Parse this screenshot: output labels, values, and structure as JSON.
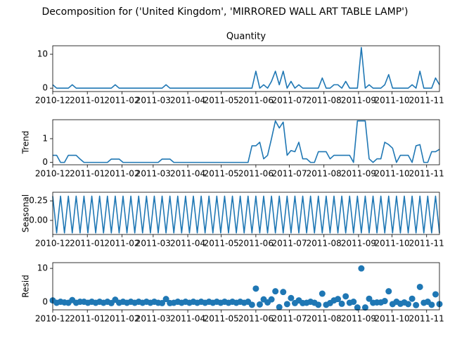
{
  "title": "Decomposition for ('United Kingdom', 'MIRRORED WALL ART TABLE LAMP')",
  "chart_data": [
    {
      "type": "line",
      "title": "Quantity",
      "color": "#1f77b4",
      "x": [
        0,
        3.5,
        7,
        10.5,
        14,
        17.5,
        21,
        24.5,
        28,
        31.5,
        35,
        38.5,
        42,
        45.5,
        49,
        52.5,
        56,
        59.5,
        63,
        66.5,
        70,
        73.5,
        77,
        80.5,
        84,
        87.5,
        91,
        94.5,
        98,
        101.5,
        105,
        108.5,
        112,
        115.5,
        119,
        122.5,
        126,
        129.5,
        133,
        136.5,
        140,
        143.5,
        147,
        150.5,
        154,
        157.5,
        161,
        164.5,
        168,
        171.5,
        175,
        178.5,
        182,
        185.5,
        189,
        192.5,
        196,
        199.5,
        203,
        206.5,
        210,
        213.5,
        217,
        220.5,
        224,
        227.5,
        231,
        234.5,
        238,
        241.5,
        245,
        248.5,
        252,
        255.5,
        259,
        262.5,
        266,
        269.5,
        273,
        276.5,
        280,
        283.5,
        287,
        290.5,
        294,
        297.5,
        301,
        304.5,
        308,
        311.5,
        315,
        318.5,
        322,
        325.5,
        329,
        332.5,
        336,
        339.5,
        343,
        346.5
      ],
      "values": [
        1,
        0,
        0,
        0,
        0,
        1,
        0,
        0,
        0,
        0,
        0,
        0,
        0,
        0,
        0,
        0,
        1,
        0,
        0,
        0,
        0,
        0,
        0,
        0,
        0,
        0,
        0,
        0,
        0,
        1,
        0,
        0,
        0,
        0,
        0,
        0,
        0,
        0,
        0,
        0,
        0,
        0,
        0,
        0,
        0,
        0,
        0,
        0,
        0,
        0,
        0,
        0,
        5,
        0,
        1,
        0,
        2,
        5,
        1,
        5,
        0,
        2,
        0,
        1,
        0,
        0,
        0,
        0,
        0,
        3,
        0,
        0,
        1,
        1,
        0,
        2,
        0,
        0,
        0,
        12,
        0,
        1,
        0,
        0,
        0,
        1,
        4,
        0,
        0,
        0,
        0,
        0,
        1,
        0,
        5,
        0,
        0,
        0,
        3,
        1
      ],
      "xlim": [
        0,
        346.5
      ],
      "xticks": [
        {
          "value": 0,
          "label": "2010-12"
        },
        {
          "value": 31,
          "label": "2011-01"
        },
        {
          "value": 62,
          "label": "2011-02"
        },
        {
          "value": 90,
          "label": "2011-03"
        },
        {
          "value": 121,
          "label": "2011-04"
        },
        {
          "value": 151,
          "label": "2011-05"
        },
        {
          "value": 182,
          "label": "2011-06"
        },
        {
          "value": 212,
          "label": "2011-07"
        },
        {
          "value": 243,
          "label": "2011-08"
        },
        {
          "value": 274,
          "label": "2011-09"
        },
        {
          "value": 304,
          "label": "2011-10"
        },
        {
          "value": 335,
          "label": "2011-11"
        }
      ],
      "ylim": [
        -1,
        12.5
      ],
      "yticks": [
        0,
        10
      ]
    },
    {
      "type": "line",
      "ylabel": "Trend",
      "color": "#1f77b4",
      "x": [
        0,
        3.5,
        7,
        10.5,
        14,
        17.5,
        21,
        24.5,
        28,
        31.5,
        35,
        38.5,
        42,
        45.5,
        49,
        52.5,
        56,
        59.5,
        63,
        66.5,
        70,
        73.5,
        77,
        80.5,
        84,
        87.5,
        91,
        94.5,
        98,
        101.5,
        105,
        108.5,
        112,
        115.5,
        119,
        122.5,
        126,
        129.5,
        133,
        136.5,
        140,
        143.5,
        147,
        150.5,
        154,
        157.5,
        161,
        164.5,
        168,
        171.5,
        175,
        178.5,
        182,
        185.5,
        189,
        192.5,
        196,
        199.5,
        203,
        206.5,
        210,
        213.5,
        217,
        220.5,
        224,
        227.5,
        231,
        234.5,
        238,
        241.5,
        245,
        248.5,
        252,
        255.5,
        259,
        262.5,
        266,
        269.5,
        273,
        276.5,
        280,
        283.5,
        287,
        290.5,
        294,
        297.5,
        301,
        304.5,
        308,
        311.5,
        315,
        318.5,
        322,
        325.5,
        329,
        332.5,
        336,
        339.5,
        343,
        346.5
      ],
      "values": [
        0.3,
        0.3,
        0,
        0,
        0.3,
        0.3,
        0.3,
        0.14,
        0,
        0,
        0,
        0,
        0,
        0,
        0,
        0.14,
        0.14,
        0.14,
        0,
        0,
        0,
        0,
        0,
        0,
        0,
        0,
        0,
        0,
        0.14,
        0.14,
        0.14,
        0,
        0,
        0,
        0,
        0,
        0,
        0,
        0,
        0,
        0,
        0,
        0,
        0,
        0,
        0,
        0,
        0,
        0,
        0,
        0,
        0.7,
        0.7,
        0.85,
        0.15,
        0.3,
        1.0,
        1.75,
        1.45,
        1.7,
        0.3,
        0.5,
        0.45,
        0.85,
        0.15,
        0.15,
        0,
        0,
        0.45,
        0.45,
        0.45,
        0.15,
        0.3,
        0.3,
        0.3,
        0.3,
        0.3,
        0,
        1.75,
        1.75,
        1.75,
        0.15,
        0,
        0.15,
        0.15,
        0.85,
        0.75,
        0.6,
        0,
        0.3,
        0.3,
        0.3,
        0,
        0.7,
        0.75,
        0,
        0,
        0.45,
        0.45,
        0.55
      ],
      "xlim": [
        0,
        346.5
      ],
      "xticks": [
        {
          "value": 0,
          "label": "2010-12"
        },
        {
          "value": 31,
          "label": "2011-01"
        },
        {
          "value": 62,
          "label": "2011-02"
        },
        {
          "value": 90,
          "label": "2011-03"
        },
        {
          "value": 121,
          "label": "2011-04"
        },
        {
          "value": 151,
          "label": "2011-05"
        },
        {
          "value": 182,
          "label": "2011-06"
        },
        {
          "value": 212,
          "label": "2011-07"
        },
        {
          "value": 243,
          "label": "2011-08"
        },
        {
          "value": 274,
          "label": "2011-09"
        },
        {
          "value": 304,
          "label": "2011-10"
        },
        {
          "value": 335,
          "label": "2011-11"
        }
      ],
      "ylim": [
        -0.1,
        1.8
      ],
      "yticks": [
        0,
        1
      ]
    },
    {
      "type": "line",
      "ylabel": "Seasonal",
      "color": "#1f77b4",
      "x": [
        0,
        3.5,
        7,
        10.5,
        14,
        17.5,
        21,
        24.5,
        28,
        31.5,
        35,
        38.5,
        42,
        45.5,
        49,
        52.5,
        56,
        59.5,
        63,
        66.5,
        70,
        73.5,
        77,
        80.5,
        84,
        87.5,
        91,
        94.5,
        98,
        101.5,
        105,
        108.5,
        112,
        115.5,
        119,
        122.5,
        126,
        129.5,
        133,
        136.5,
        140,
        143.5,
        147,
        150.5,
        154,
        157.5,
        161,
        164.5,
        168,
        171.5,
        175,
        178.5,
        182,
        185.5,
        189,
        192.5,
        196,
        199.5,
        203,
        206.5,
        210,
        213.5,
        217,
        220.5,
        224,
        227.5,
        231,
        234.5,
        238,
        241.5,
        245,
        248.5,
        252,
        255.5,
        259,
        262.5,
        266,
        269.5,
        273,
        276.5,
        280,
        283.5,
        287,
        290.5,
        294,
        297.5,
        301,
        304.5,
        308,
        311.5,
        315,
        318.5,
        322,
        325.5,
        329,
        332.5,
        336,
        339.5,
        343,
        346.5
      ],
      "values": [
        0.31,
        -0.16,
        0.31,
        -0.16,
        0.31,
        -0.16,
        0.31,
        -0.16,
        0.31,
        -0.16,
        0.31,
        -0.16,
        0.31,
        -0.16,
        0.31,
        -0.16,
        0.31,
        -0.16,
        0.31,
        -0.16,
        0.31,
        -0.16,
        0.31,
        -0.16,
        0.31,
        -0.16,
        0.31,
        -0.16,
        0.31,
        -0.16,
        0.31,
        -0.16,
        0.31,
        -0.16,
        0.31,
        -0.16,
        0.31,
        -0.16,
        0.31,
        -0.16,
        0.31,
        -0.16,
        0.31,
        -0.16,
        0.31,
        -0.16,
        0.31,
        -0.16,
        0.31,
        -0.16,
        0.31,
        -0.16,
        0.31,
        -0.16,
        0.31,
        -0.16,
        0.31,
        -0.16,
        0.31,
        -0.16,
        0.31,
        -0.16,
        0.31,
        -0.16,
        0.31,
        -0.16,
        0.31,
        -0.16,
        0.31,
        -0.16,
        0.31,
        -0.16,
        0.31,
        -0.16,
        0.31,
        -0.16,
        0.31,
        -0.16,
        0.31,
        -0.16,
        0.31,
        -0.16,
        0.31,
        -0.16,
        0.31,
        -0.16,
        0.31,
        -0.16,
        0.31,
        -0.16,
        0.31,
        -0.16,
        0.31,
        -0.16,
        0.31,
        -0.16,
        0.31,
        -0.16,
        0.31,
        -0.16
      ],
      "xlim": [
        0,
        346.5
      ],
      "xticks": [
        {
          "value": 0,
          "label": "2010-12"
        },
        {
          "value": 31,
          "label": "2011-01"
        },
        {
          "value": 62,
          "label": "2011-02"
        },
        {
          "value": 90,
          "label": "2011-03"
        },
        {
          "value": 121,
          "label": "2011-04"
        },
        {
          "value": 151,
          "label": "2011-05"
        },
        {
          "value": 182,
          "label": "2011-06"
        },
        {
          "value": 212,
          "label": "2011-07"
        },
        {
          "value": 243,
          "label": "2011-08"
        },
        {
          "value": 274,
          "label": "2011-09"
        },
        {
          "value": 304,
          "label": "2011-10"
        },
        {
          "value": 335,
          "label": "2011-11"
        }
      ],
      "ylim": [
        -0.18,
        0.36
      ],
      "yticks": [
        {
          "value": 0,
          "label": "0.00"
        },
        {
          "value": 0.25,
          "label": "0.25"
        }
      ]
    },
    {
      "type": "scatter",
      "ylabel": "Resid",
      "color": "#1f77b4",
      "x": [
        0,
        3.5,
        7,
        10.5,
        14,
        17.5,
        21,
        24.5,
        28,
        31.5,
        35,
        38.5,
        42,
        45.5,
        49,
        52.5,
        56,
        59.5,
        63,
        66.5,
        70,
        73.5,
        77,
        80.5,
        84,
        87.5,
        91,
        94.5,
        98,
        101.5,
        105,
        108.5,
        112,
        115.5,
        119,
        122.5,
        126,
        129.5,
        133,
        136.5,
        140,
        143.5,
        147,
        150.5,
        154,
        157.5,
        161,
        164.5,
        168,
        171.5,
        175,
        178.5,
        182,
        185.5,
        189,
        192.5,
        196,
        199.5,
        203,
        206.5,
        210,
        213.5,
        217,
        220.5,
        224,
        227.5,
        231,
        234.5,
        238,
        241.5,
        245,
        248.5,
        252,
        255.5,
        259,
        262.5,
        266,
        269.5,
        273,
        276.5,
        280,
        283.5,
        287,
        290.5,
        294,
        297.5,
        301,
        304.5,
        308,
        311.5,
        315,
        318.5,
        322,
        325.5,
        329,
        332.5,
        336,
        339.5,
        343,
        346.5
      ],
      "values": [
        0.5,
        -0.2,
        0.1,
        -0.1,
        -0.2,
        0.6,
        -0.2,
        0.1,
        0.1,
        -0.2,
        0.1,
        -0.2,
        0.1,
        -0.2,
        0.1,
        -0.3,
        0.7,
        -0.2,
        0.1,
        -0.2,
        0.1,
        -0.2,
        0.1,
        -0.2,
        0.1,
        -0.2,
        0.1,
        -0.2,
        -0.3,
        0.9,
        -0.3,
        -0.2,
        0.1,
        -0.2,
        0.1,
        -0.2,
        0.1,
        -0.2,
        0.1,
        -0.2,
        0.1,
        -0.2,
        0.1,
        -0.2,
        0.1,
        -0.2,
        0.1,
        -0.2,
        0.1,
        -0.2,
        0.1,
        -0.8,
        4,
        -0.7,
        0.8,
        -0.1,
        0.8,
        3.2,
        -1.5,
        3,
        -0.6,
        1.2,
        -0.3,
        0.5,
        -0.3,
        -0.2,
        0.1,
        -0.2,
        -0.8,
        2.5,
        -0.8,
        -0.3,
        0.5,
        0.9,
        -0.5,
        1.7,
        -0.2,
        0.1,
        -1.6,
        10,
        -1.6,
        1.0,
        -0.2,
        -0.1,
        -0.1,
        0.3,
        3.2,
        -0.6,
        0.1,
        -0.5,
        -0.1,
        -0.6,
        1.0,
        -0.9,
        4.5,
        -0.2,
        0.1,
        -0.8,
        2.3,
        -0.6
      ],
      "xlim": [
        0,
        346.5
      ],
      "xticks": [
        {
          "value": 0,
          "label": "2010-12"
        },
        {
          "value": 31,
          "label": "2011-01"
        },
        {
          "value": 62,
          "label": "2011-02"
        },
        {
          "value": 90,
          "label": "2011-03"
        },
        {
          "value": 121,
          "label": "2011-04"
        },
        {
          "value": 151,
          "label": "2011-05"
        },
        {
          "value": 182,
          "label": "2011-06"
        },
        {
          "value": 212,
          "label": "2011-07"
        },
        {
          "value": 243,
          "label": "2011-08"
        },
        {
          "value": 274,
          "label": "2011-09"
        },
        {
          "value": 304,
          "label": "2011-10"
        },
        {
          "value": 335,
          "label": "2011-11"
        }
      ],
      "ylim": [
        -2.3,
        11.7
      ],
      "yticks": [
        0,
        10
      ]
    }
  ]
}
